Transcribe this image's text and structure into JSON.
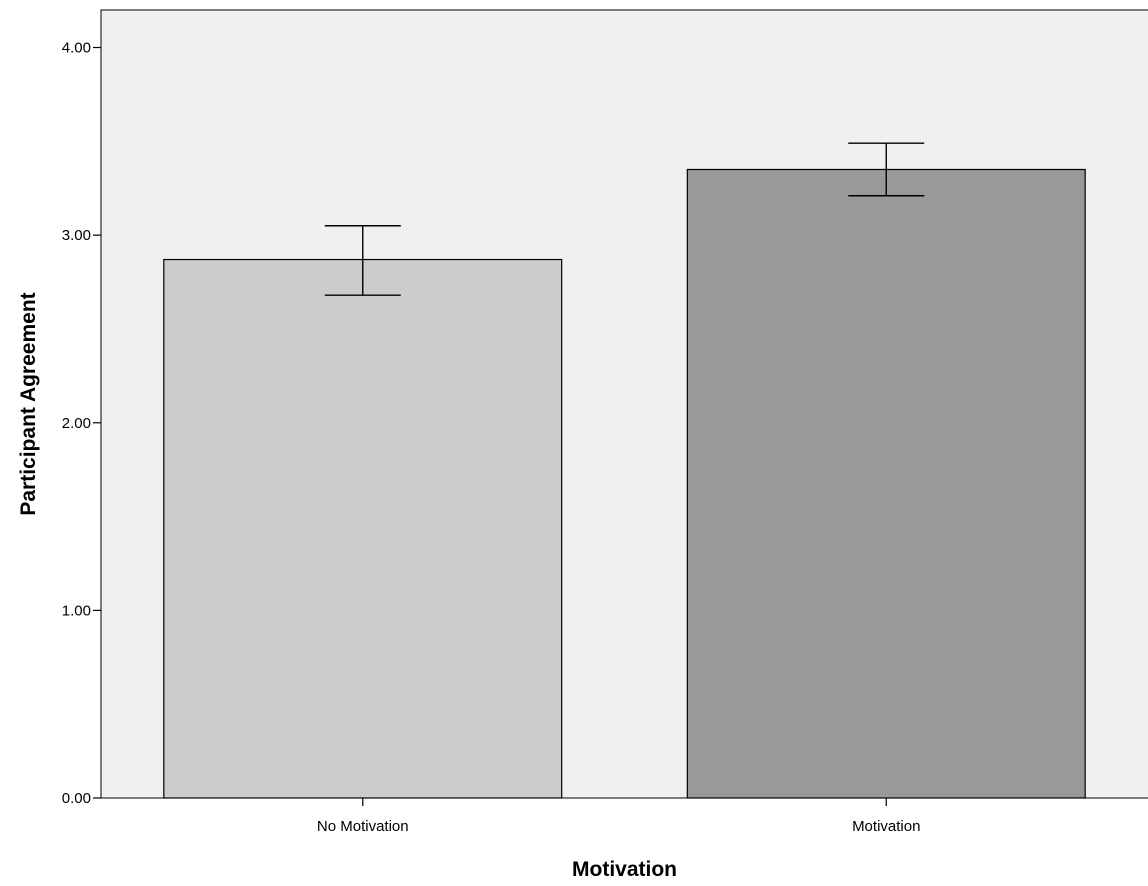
{
  "chart_data": {
    "type": "bar",
    "title": "",
    "xlabel": "Motivation",
    "ylabel": "Participant Agreement",
    "categories": [
      "No Motivation",
      "Motivation"
    ],
    "values": [
      2.87,
      3.35
    ],
    "error_bars": [
      {
        "low": 2.68,
        "high": 3.05
      },
      {
        "low": 3.21,
        "high": 3.49
      }
    ],
    "bar_colors": [
      "#cccccc",
      "#999999"
    ],
    "plot_background": "#f0f0f0",
    "ylim": [
      0,
      4.2
    ],
    "yticks": [
      0,
      1,
      2,
      3,
      4
    ],
    "ytick_labels": [
      "0.00",
      "1.00",
      "2.00",
      "3.00",
      "4.00"
    ],
    "grid": false,
    "legend": "none"
  }
}
